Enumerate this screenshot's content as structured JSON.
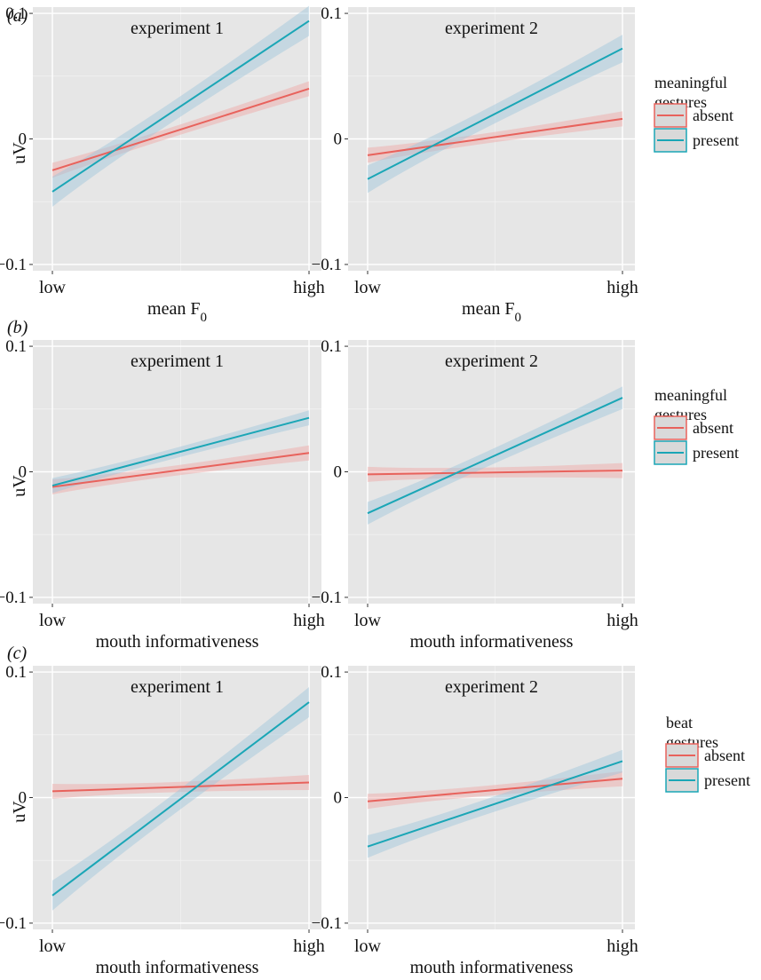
{
  "figure": {
    "rows": [
      {
        "label": "(a)",
        "legend": {
          "title_lines": [
            "meaningful",
            "gestures"
          ],
          "entries": [
            "absent",
            "present"
          ]
        },
        "plots": [
          {
            "title": "experiment 1",
            "xlabel": "mean F",
            "xlabel_sub": "0",
            "ylabel": "uV"
          },
          {
            "title": "experiment 2",
            "xlabel": "mean F",
            "xlabel_sub": "0",
            "ylabel": ""
          }
        ]
      },
      {
        "label": "(b)",
        "legend": {
          "title_lines": [
            "meaningful",
            "gestures"
          ],
          "entries": [
            "absent",
            "present"
          ]
        },
        "plots": [
          {
            "title": "experiment 1",
            "xlabel": "mouth informativeness",
            "xlabel_sub": "",
            "ylabel": "uV"
          },
          {
            "title": "experiment 2",
            "xlabel": "mouth informativeness",
            "xlabel_sub": "",
            "ylabel": ""
          }
        ]
      },
      {
        "label": "(c)",
        "legend": {
          "title_lines": [
            "beat",
            "gestures"
          ],
          "entries": [
            "absent",
            "present"
          ]
        },
        "plots": [
          {
            "title": "experiment 1",
            "xlabel": "mouth informativeness",
            "xlabel_sub": "",
            "ylabel": "uV"
          },
          {
            "title": "experiment 2",
            "xlabel": "mouth informativeness",
            "xlabel_sub": "",
            "ylabel": ""
          }
        ]
      }
    ]
  },
  "chart_data": [
    {
      "type": "line",
      "panel": "(a)",
      "title": "experiment 1",
      "xlabel": "mean F0",
      "ylabel": "uV",
      "x_ticks": [
        "low",
        "high"
      ],
      "y_ticks": [
        "0.1",
        "0",
        "−0.1"
      ],
      "ylim": [
        -0.105,
        0.105
      ],
      "grid": true,
      "legend_position": "right",
      "series": [
        {
          "name": "absent",
          "color": "#e8625c",
          "band_color": "#f0a7a4",
          "low": -0.025,
          "high": 0.04,
          "ci": 0.006
        },
        {
          "name": "present",
          "color": "#1aa6b6",
          "band_color": "#9ec6dc",
          "low": -0.042,
          "high": 0.094,
          "ci": 0.012
        }
      ]
    },
    {
      "type": "line",
      "panel": "(a)",
      "title": "experiment 2",
      "xlabel": "mean F0",
      "ylabel": "",
      "x_ticks": [
        "low",
        "high"
      ],
      "y_ticks": [
        "0.1",
        "0",
        "−0.1"
      ],
      "ylim": [
        -0.105,
        0.105
      ],
      "grid": true,
      "legend_position": "right",
      "series": [
        {
          "name": "absent",
          "color": "#e8625c",
          "band_color": "#f0a7a4",
          "low": -0.013,
          "high": 0.016,
          "ci": 0.006
        },
        {
          "name": "present",
          "color": "#1aa6b6",
          "band_color": "#9ec6dc",
          "low": -0.032,
          "high": 0.072,
          "ci": 0.011
        }
      ]
    },
    {
      "type": "line",
      "panel": "(b)",
      "title": "experiment 1",
      "xlabel": "mouth informativeness",
      "ylabel": "uV",
      "x_ticks": [
        "low",
        "high"
      ],
      "y_ticks": [
        "0.1",
        "0",
        "−0.1"
      ],
      "ylim": [
        -0.105,
        0.105
      ],
      "grid": true,
      "legend_position": "right",
      "series": [
        {
          "name": "absent",
          "color": "#e8625c",
          "band_color": "#f0a7a4",
          "low": -0.012,
          "high": 0.015,
          "ci": 0.006
        },
        {
          "name": "present",
          "color": "#1aa6b6",
          "band_color": "#9ec6dc",
          "low": -0.011,
          "high": 0.043,
          "ci": 0.006
        }
      ]
    },
    {
      "type": "line",
      "panel": "(b)",
      "title": "experiment 2",
      "xlabel": "mouth informativeness",
      "ylabel": "",
      "x_ticks": [
        "low",
        "high"
      ],
      "y_ticks": [
        "0.1",
        "0",
        "−0.1"
      ],
      "ylim": [
        -0.105,
        0.105
      ],
      "grid": true,
      "legend_position": "right",
      "series": [
        {
          "name": "absent",
          "color": "#e8625c",
          "band_color": "#f0a7a4",
          "low": -0.002,
          "high": 0.001,
          "ci": 0.006
        },
        {
          "name": "present",
          "color": "#1aa6b6",
          "band_color": "#9ec6dc",
          "low": -0.033,
          "high": 0.059,
          "ci": 0.009
        }
      ]
    },
    {
      "type": "line",
      "panel": "(c)",
      "title": "experiment 1",
      "xlabel": "mouth informativeness",
      "ylabel": "uV",
      "x_ticks": [
        "low",
        "high"
      ],
      "y_ticks": [
        "0.1",
        "0",
        "−0.1"
      ],
      "ylim": [
        -0.105,
        0.105
      ],
      "grid": true,
      "legend_position": "right",
      "series": [
        {
          "name": "absent",
          "color": "#e8625c",
          "band_color": "#f0a7a4",
          "low": 0.005,
          "high": 0.012,
          "ci": 0.006
        },
        {
          "name": "present",
          "color": "#1aa6b6",
          "band_color": "#9ec6dc",
          "low": -0.078,
          "high": 0.076,
          "ci": 0.012
        }
      ]
    },
    {
      "type": "line",
      "panel": "(c)",
      "title": "experiment 2",
      "xlabel": "mouth informativeness",
      "ylabel": "",
      "x_ticks": [
        "low",
        "high"
      ],
      "y_ticks": [
        "0.1",
        "0",
        "−0.1"
      ],
      "ylim": [
        -0.105,
        0.105
      ],
      "grid": true,
      "legend_position": "right",
      "series": [
        {
          "name": "absent",
          "color": "#e8625c",
          "band_color": "#f0a7a4",
          "low": -0.003,
          "high": 0.015,
          "ci": 0.006
        },
        {
          "name": "present",
          "color": "#1aa6b6",
          "band_color": "#9ec6dc",
          "low": -0.039,
          "high": 0.029,
          "ci": 0.009
        }
      ]
    }
  ]
}
